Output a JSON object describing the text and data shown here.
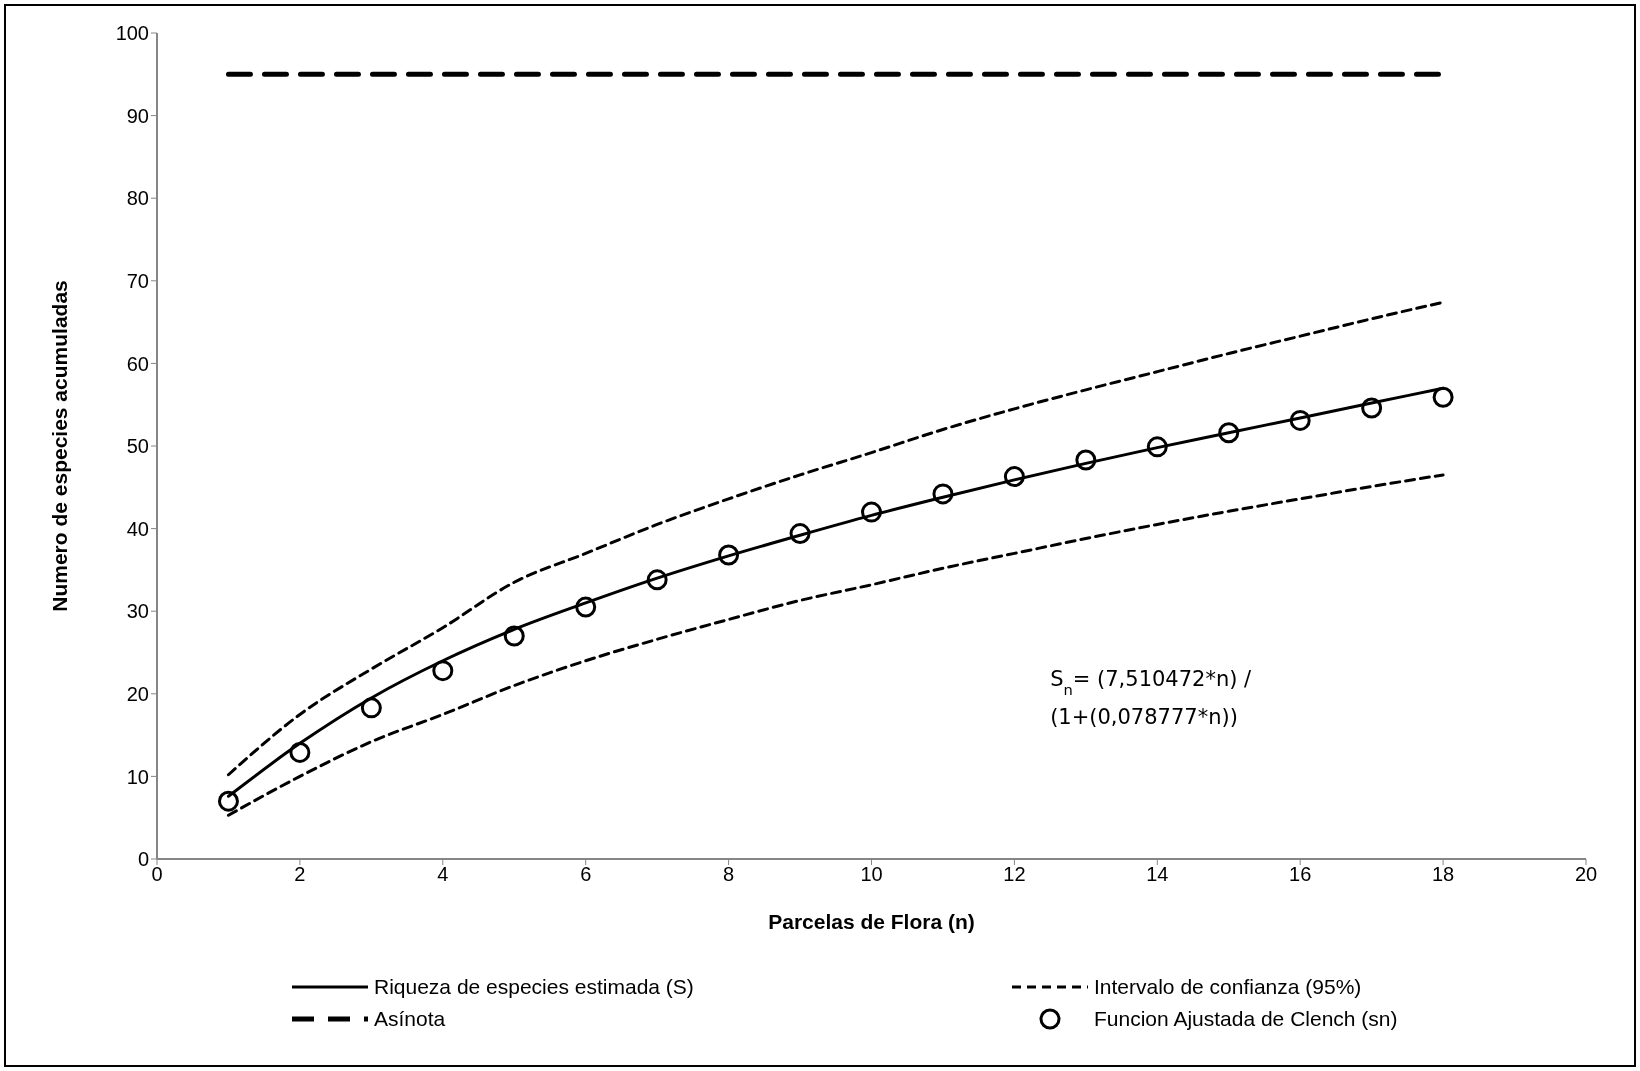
{
  "chart_data": {
    "type": "line",
    "xlabel": "Parcelas de Flora (n)",
    "ylabel": "Numero de especies acumuladas",
    "x": [
      1,
      2,
      3,
      4,
      5,
      6,
      7,
      8,
      9,
      10,
      11,
      12,
      13,
      14,
      15,
      16,
      17,
      18
    ],
    "series": [
      {
        "name": "Riqueza de especies estimada (S)",
        "color": "#000000",
        "line_style": "solid",
        "marker": "none",
        "values": [
          7.6,
          14.0,
          19.5,
          24.0,
          27.8,
          31.0,
          34.0,
          36.7,
          39.2,
          41.6,
          43.8,
          45.9,
          47.9,
          49.8,
          51.6,
          53.4,
          55.2,
          57.0
        ]
      },
      {
        "name": "Intervalo de confianza (95%)",
        "color": "#000000",
        "line_style": "dotted",
        "marker": "none",
        "values": [
          10.2,
          17.5,
          23.0,
          28.0,
          33.5,
          37.0,
          40.5,
          43.6,
          46.5,
          49.2,
          52.0,
          54.5,
          56.8,
          59.0,
          61.2,
          63.3,
          65.4,
          67.4
        ]
      },
      {
        "color": "#000000",
        "line_style": "dotted",
        "marker": "none",
        "values": [
          5.3,
          10.0,
          14.2,
          17.5,
          21.0,
          24.0,
          26.6,
          29.0,
          31.3,
          33.2,
          35.2,
          37.0,
          38.8,
          40.5,
          42.1,
          43.6,
          45.1,
          46.5
        ]
      },
      {
        "name": "Asínota",
        "color": "#000000",
        "line_style": "dashed",
        "marker": "none",
        "values": [
          95,
          95,
          95,
          95,
          95,
          95,
          95,
          95,
          95,
          95,
          95,
          95,
          95,
          95,
          95,
          95,
          95,
          95
        ]
      },
      {
        "name": "Funcion Ajustada de Clench (sn)",
        "type": "scatter",
        "color": "#000000",
        "marker": "circle",
        "values": [
          7.0,
          12.9,
          18.3,
          22.8,
          27.0,
          30.5,
          33.8,
          36.8,
          39.4,
          42.0,
          44.2,
          46.3,
          48.3,
          49.9,
          51.6,
          53.1,
          54.6,
          55.9
        ]
      }
    ],
    "xlim": [
      0,
      20
    ],
    "xticks": [
      0,
      2,
      4,
      6,
      8,
      10,
      12,
      14,
      16,
      18,
      20
    ],
    "ylim": [
      0,
      100
    ],
    "yticks": [
      0,
      10,
      20,
      30,
      40,
      50,
      60,
      70,
      80,
      90,
      100
    ],
    "grid": false,
    "legend": "bottom",
    "annotations": [
      "S$_{n}$= (7,510472*n) / (1+(0,078777*n))"
    ]
  }
}
